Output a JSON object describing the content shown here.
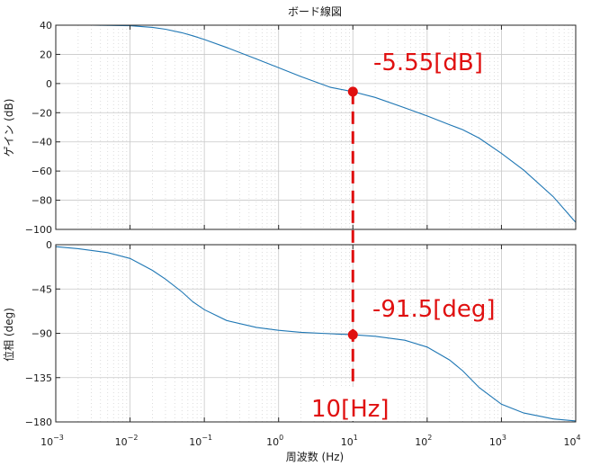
{
  "chart_data": [
    {
      "type": "line",
      "title": "ボード線図",
      "ylabel": "ゲイン (dB)",
      "xlabel": "",
      "xscale": "log",
      "xlim": [
        0.001,
        10000
      ],
      "ylim": [
        -100,
        40
      ],
      "yticks": [
        "40",
        "20",
        "0",
        "−20",
        "−40",
        "−60",
        "−80",
        "−100"
      ],
      "grid": true,
      "line_color": "#1f77b4",
      "series": [
        {
          "x": [
            0.001,
            0.003,
            0.01,
            0.02,
            0.03,
            0.05,
            0.07,
            0.1,
            0.2,
            0.5,
            1,
            2,
            5,
            10,
            20,
            50,
            100,
            200,
            300,
            500,
            1000,
            2000,
            5000,
            10000
          ],
          "values": [
            40,
            40,
            39.6,
            38.5,
            37.2,
            34.8,
            32.7,
            30.2,
            24.7,
            16.9,
            10.9,
            4.8,
            -2.6,
            -5.55,
            -9.5,
            -16.7,
            -22.2,
            -28.2,
            -31.6,
            -37.4,
            -47.8,
            -59.4,
            -77.6,
            -95.2
          ]
        }
      ],
      "annotation": {
        "x": 10,
        "y": -5.55,
        "text": "-5.55[dB]",
        "marker_color": "#e01010"
      }
    },
    {
      "type": "line",
      "title": "",
      "ylabel": "位相 (deg)",
      "xlabel": "周波数 (Hz)",
      "xscale": "log",
      "xlim": [
        0.001,
        10000
      ],
      "ylim": [
        -180,
        0
      ],
      "yticks": [
        "0",
        "−45",
        "−90",
        "−135",
        "−180"
      ],
      "xticks": [
        "10",
        "10",
        "10",
        "10",
        "10",
        "10",
        "10",
        "10"
      ],
      "xtick_exponents": [
        "−3",
        "−2",
        "−1",
        "0",
        "1",
        "2",
        "3",
        "4"
      ],
      "grid": true,
      "line_color": "#1f77b4",
      "series": [
        {
          "x": [
            0.001,
            0.002,
            0.005,
            0.01,
            0.02,
            0.03,
            0.05,
            0.07,
            0.1,
            0.2,
            0.5,
            1,
            2,
            5,
            10,
            20,
            50,
            100,
            200,
            300,
            500,
            1000,
            2000,
            5000,
            10000
          ],
          "values": [
            -2,
            -4,
            -8,
            -14,
            -26,
            -35,
            -48,
            -58,
            -66,
            -77,
            -84,
            -87,
            -89,
            -90.5,
            -91.5,
            -93,
            -97,
            -104,
            -117,
            -128,
            -145,
            -162,
            -171,
            -177,
            -179
          ]
        }
      ],
      "annotation": {
        "x": 10,
        "y": -91.5,
        "text": "-91.5[deg]",
        "marker_color": "#e01010"
      },
      "x_annotation": "10[Hz]"
    }
  ]
}
